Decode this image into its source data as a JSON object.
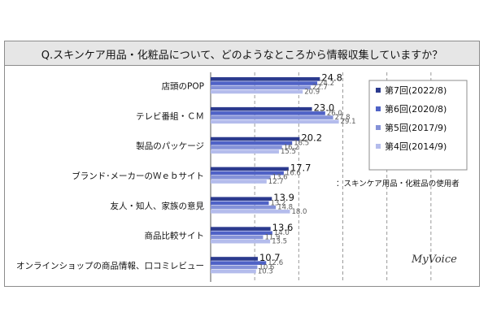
{
  "chart_data": {
    "type": "bar",
    "orientation": "horizontal",
    "title": "Q.スキンケア用品・化粧品について、どのようなところから情報収集していますか？",
    "categories": [
      "店頭のPOP",
      "テレビ番組・ＣＭ",
      "製品のパッケージ",
      "ブランド･メーカーのＷｅｂサイト",
      "友人・知人、家族の意見",
      "商品比較サイト",
      "オンラインショップの商品情報、口コミレビュー"
    ],
    "series": [
      {
        "name": "第7回(2022/8)",
        "color": "#2b3a8e",
        "values": [
          24.8,
          23.0,
          20.2,
          17.7,
          13.9,
          13.6,
          10.7
        ],
        "labels": [
          "24.8",
          "23.0",
          "20.2",
          "17.7",
          "13.9",
          "13.6",
          "10.7"
        ]
      },
      {
        "name": "第6回(2020/8)",
        "color": "#4f62c6",
        "values": [
          24.2,
          26.0,
          18.5,
          16.6,
          13.2,
          14.0,
          12.6
        ],
        "labels": [
          "24.2",
          "26.0",
          "18.5",
          "16.6",
          "13.2",
          "14.0",
          "12.6"
        ]
      },
      {
        "name": "第5回(2017/9)",
        "color": "#8592d8",
        "values": [
          22.7,
          27.8,
          16.2,
          13.6,
          14.8,
          11.9,
          10.6
        ],
        "labels": [
          "22.7",
          "27.8",
          "16.2",
          "13.6",
          "14.8",
          "11.9",
          "10.6"
        ]
      },
      {
        "name": "第4回(2014/9)",
        "color": "#b4bcec",
        "values": [
          20.9,
          29.1,
          15.5,
          12.7,
          18.0,
          13.5,
          10.3
        ],
        "labels": [
          "20.9",
          "29.1",
          "15.5",
          "12.7",
          "18.0",
          "13.5",
          "10.3"
        ]
      }
    ],
    "xlim": [
      0,
      60
    ],
    "grid": true,
    "legend": "top-right",
    "note": "：スキンケア用品・化粧品の使用者",
    "logo": "MyVoice"
  }
}
